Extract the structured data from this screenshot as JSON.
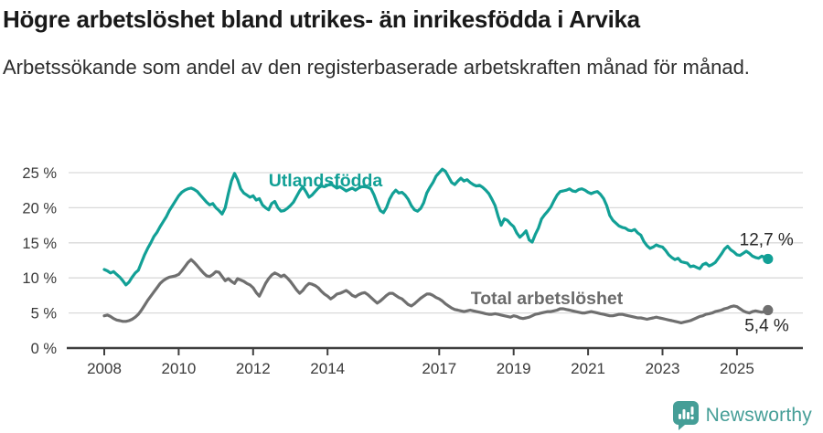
{
  "header": {
    "title": "Högre arbetslöshet bland utrikes- än inrikesfödda i Arvika",
    "subtitle": "Arbetssökande som andel av den registerbaserade arbetskraften månad för månad."
  },
  "chart_data": {
    "type": "line",
    "title": "Högre arbetslöshet bland utrikes- än inrikesfödda i Arvika",
    "x_unit": "month",
    "x_start": "2008-01",
    "x_end": "2025-11",
    "x_ticks": [
      2008,
      2010,
      2012,
      2014,
      2017,
      2019,
      2021,
      2023,
      2025
    ],
    "y_ticks": [
      "0 %",
      "5 %",
      "10 %",
      "15 %",
      "20 %",
      "25 %"
    ],
    "y_tick_values": [
      0,
      5,
      10,
      15,
      20,
      25
    ],
    "ylim": [
      0,
      26.5
    ],
    "grid": "horizontal",
    "legend_position": "inline-labels",
    "series": [
      {
        "name": "Utlandsfödda",
        "color": "#12a096",
        "end_label": "12,7 %",
        "end_value": 12.7,
        "values": [
          11.2,
          11.0,
          10.7,
          10.9,
          10.5,
          10.1,
          9.6,
          9.0,
          9.4,
          10.1,
          10.7,
          11.1,
          12.2,
          13.3,
          14.2,
          15.0,
          15.9,
          16.5,
          17.3,
          18.0,
          18.7,
          19.6,
          20.3,
          21.0,
          21.7,
          22.2,
          22.5,
          22.7,
          22.8,
          22.6,
          22.3,
          21.8,
          21.3,
          20.8,
          20.4,
          20.6,
          20.0,
          19.6,
          19.1,
          20.0,
          22.0,
          23.8,
          24.9,
          24.0,
          22.7,
          22.1,
          21.8,
          21.5,
          21.7,
          21.1,
          21.3,
          20.4,
          20.0,
          19.7,
          20.6,
          20.9,
          20.0,
          19.5,
          19.6,
          19.9,
          20.3,
          20.8,
          21.6,
          22.4,
          23.0,
          22.3,
          21.5,
          21.8,
          22.3,
          22.8,
          23.1,
          23.0,
          23.2,
          23.4,
          23.1,
          22.8,
          23.0,
          22.7,
          22.4,
          22.6,
          22.8,
          22.5,
          22.8,
          23.0,
          23.0,
          22.9,
          22.7,
          21.8,
          20.6,
          19.6,
          19.3,
          20.0,
          21.2,
          22.0,
          22.5,
          22.1,
          22.2,
          21.8,
          21.2,
          20.3,
          19.7,
          19.5,
          19.9,
          20.7,
          22.1,
          22.9,
          23.6,
          24.5,
          25.0,
          25.5,
          25.2,
          24.4,
          23.6,
          23.3,
          23.8,
          24.2,
          23.8,
          24.0,
          23.6,
          23.3,
          23.1,
          23.2,
          22.9,
          22.5,
          22.0,
          21.2,
          20.3,
          18.8,
          17.5,
          18.4,
          18.2,
          17.7,
          17.3,
          16.4,
          15.8,
          16.2,
          16.7,
          15.4,
          15.1,
          16.2,
          17.1,
          18.4,
          19.0,
          19.5,
          20.1,
          21.0,
          21.8,
          22.3,
          22.4,
          22.5,
          22.7,
          22.4,
          22.3,
          22.6,
          22.7,
          22.5,
          22.2,
          22.0,
          22.2,
          22.3,
          21.9,
          21.3,
          20.3,
          18.9,
          18.2,
          17.8,
          17.4,
          17.2,
          17.1,
          16.8,
          16.7,
          16.9,
          16.4,
          16.1,
          15.2,
          14.6,
          14.2,
          14.4,
          14.7,
          14.5,
          14.4,
          13.9,
          13.3,
          12.9,
          12.6,
          12.8,
          12.3,
          12.2,
          12.1,
          11.6,
          11.7,
          11.5,
          11.3,
          11.9,
          12.1,
          11.7,
          11.9,
          12.2,
          12.8,
          13.4,
          14.1,
          14.5,
          14.0,
          13.7,
          13.3,
          13.2,
          13.5,
          13.8,
          13.5,
          13.1,
          12.9,
          12.8,
          13.1,
          12.9,
          12.7
        ]
      },
      {
        "name": "Total arbetslöshet",
        "color": "#6f6f6f",
        "end_label": "5,4 %",
        "end_value": 5.4,
        "values": [
          4.6,
          4.7,
          4.5,
          4.2,
          4.0,
          3.9,
          3.8,
          3.8,
          3.9,
          4.1,
          4.4,
          4.8,
          5.4,
          6.1,
          6.8,
          7.4,
          8.0,
          8.6,
          9.2,
          9.6,
          9.9,
          10.1,
          10.2,
          10.3,
          10.5,
          11.0,
          11.6,
          12.2,
          12.6,
          12.2,
          11.7,
          11.2,
          10.7,
          10.3,
          10.2,
          10.5,
          10.9,
          10.8,
          10.2,
          9.6,
          9.9,
          9.5,
          9.2,
          9.9,
          9.7,
          9.5,
          9.2,
          9.0,
          8.6,
          7.9,
          7.4,
          8.3,
          9.2,
          9.9,
          10.4,
          10.7,
          10.5,
          10.2,
          10.4,
          10.0,
          9.5,
          8.9,
          8.3,
          7.8,
          8.2,
          8.8,
          9.2,
          9.1,
          8.9,
          8.6,
          8.1,
          7.7,
          7.4,
          7.0,
          7.3,
          7.7,
          7.8,
          8.0,
          8.2,
          7.9,
          7.5,
          7.3,
          7.6,
          7.8,
          7.9,
          7.6,
          7.2,
          6.8,
          6.4,
          6.7,
          7.1,
          7.5,
          7.8,
          7.8,
          7.5,
          7.2,
          7.0,
          6.6,
          6.2,
          6.0,
          6.3,
          6.7,
          7.1,
          7.4,
          7.7,
          7.7,
          7.5,
          7.2,
          7.0,
          6.7,
          6.3,
          6.0,
          5.7,
          5.5,
          5.4,
          5.3,
          5.2,
          5.3,
          5.4,
          5.3,
          5.2,
          5.1,
          5.0,
          4.9,
          4.8,
          4.8,
          4.9,
          4.8,
          4.7,
          4.6,
          4.5,
          4.4,
          4.6,
          4.5,
          4.3,
          4.2,
          4.3,
          4.4,
          4.6,
          4.8,
          4.9,
          5.0,
          5.1,
          5.2,
          5.2,
          5.3,
          5.4,
          5.6,
          5.6,
          5.5,
          5.4,
          5.3,
          5.2,
          5.1,
          5.0,
          5.0,
          5.1,
          5.2,
          5.1,
          5.0,
          4.9,
          4.8,
          4.7,
          4.6,
          4.6,
          4.7,
          4.8,
          4.8,
          4.7,
          4.6,
          4.5,
          4.4,
          4.3,
          4.3,
          4.2,
          4.1,
          4.2,
          4.3,
          4.4,
          4.3,
          4.2,
          4.1,
          4.0,
          3.9,
          3.8,
          3.7,
          3.6,
          3.7,
          3.8,
          3.9,
          4.1,
          4.3,
          4.5,
          4.6,
          4.8,
          4.9,
          5.0,
          5.2,
          5.3,
          5.4,
          5.6,
          5.7,
          5.9,
          6.0,
          5.9,
          5.6,
          5.3,
          5.1,
          5.0,
          5.2,
          5.3,
          5.2,
          5.1,
          5.2,
          5.4
        ]
      }
    ],
    "colors": {
      "grid": "#d9d9d9",
      "axis": "#3f3f3f",
      "tick_text": "#3a3a3a",
      "end_label_text": "#262626"
    }
  },
  "footer": {
    "brand": "Newsworthy",
    "brand_color": "#459e97"
  }
}
